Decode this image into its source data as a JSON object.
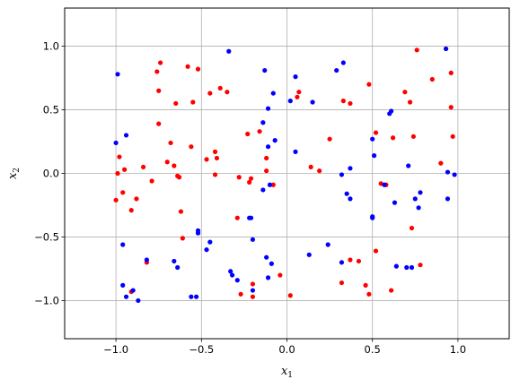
{
  "chart_data": {
    "type": "scatter",
    "xlabel": "x1",
    "ylabel": "x2",
    "xlim": [
      -1.3,
      1.3
    ],
    "ylim": [
      -1.3,
      1.3
    ],
    "grid": true,
    "xticks": [
      -1.0,
      -0.5,
      0.0,
      0.5,
      1.0
    ],
    "yticks": [
      -1.0,
      -0.5,
      0.0,
      0.5,
      1.0
    ],
    "tick_labels_x": [
      "−1.0",
      "−0.5",
      "0.0",
      "0.5",
      "1.0"
    ],
    "tick_labels_y": [
      "−1.0",
      "−0.5",
      "0.0",
      "0.5",
      "1.0"
    ],
    "series": [
      {
        "color": "#ff0000",
        "points": [
          [
            -0.74,
            0.87
          ],
          [
            -0.76,
            0.8
          ],
          [
            -0.58,
            0.84
          ],
          [
            -0.52,
            0.82
          ],
          [
            -0.39,
            0.67
          ],
          [
            -0.35,
            0.64
          ],
          [
            -0.45,
            0.63
          ],
          [
            -0.75,
            0.65
          ],
          [
            -0.65,
            0.55
          ],
          [
            -0.55,
            0.56
          ],
          [
            -0.75,
            0.39
          ],
          [
            -0.68,
            0.24
          ],
          [
            -0.56,
            0.21
          ],
          [
            -0.7,
            0.09
          ],
          [
            -0.66,
            0.06
          ],
          [
            -0.47,
            0.11
          ],
          [
            -0.42,
            0.17
          ],
          [
            -0.41,
            0.12
          ],
          [
            -0.42,
            -0.01
          ],
          [
            -0.64,
            -0.02
          ],
          [
            -0.63,
            -0.03
          ],
          [
            -0.84,
            0.05
          ],
          [
            -0.95,
            0.03
          ],
          [
            -0.98,
            0.13
          ],
          [
            -0.99,
            0.0
          ],
          [
            -1.0,
            -0.21
          ],
          [
            -0.96,
            -0.15
          ],
          [
            -0.88,
            -0.2
          ],
          [
            -0.91,
            -0.29
          ],
          [
            -0.79,
            -0.06
          ],
          [
            -0.62,
            -0.3
          ],
          [
            -0.61,
            -0.51
          ],
          [
            -0.82,
            -0.7
          ],
          [
            -0.91,
            -0.93
          ],
          [
            -0.23,
            0.31
          ],
          [
            -0.16,
            0.33
          ],
          [
            -0.12,
            0.12
          ],
          [
            -0.12,
            0.02
          ],
          [
            -0.08,
            -0.09
          ],
          [
            -0.21,
            -0.04
          ],
          [
            -0.22,
            -0.07
          ],
          [
            -0.28,
            -0.03
          ],
          [
            -0.29,
            -0.35
          ],
          [
            -0.27,
            -0.95
          ],
          [
            -0.2,
            -0.87
          ],
          [
            -0.2,
            -0.97
          ],
          [
            -0.04,
            -0.8
          ],
          [
            0.02,
            -0.96
          ],
          [
            0.06,
            0.6
          ],
          [
            0.07,
            0.64
          ],
          [
            0.14,
            0.05
          ],
          [
            0.19,
            0.02
          ],
          [
            0.25,
            0.27
          ],
          [
            0.33,
            0.57
          ],
          [
            0.37,
            0.55
          ],
          [
            0.48,
            0.7
          ],
          [
            0.52,
            0.32
          ],
          [
            0.55,
            -0.08
          ],
          [
            0.58,
            -0.09
          ],
          [
            0.62,
            0.28
          ],
          [
            0.69,
            0.64
          ],
          [
            0.72,
            0.56
          ],
          [
            0.76,
            0.97
          ],
          [
            0.85,
            0.74
          ],
          [
            0.9,
            0.08
          ],
          [
            0.96,
            0.79
          ],
          [
            0.96,
            0.52
          ],
          [
            0.97,
            0.29
          ],
          [
            0.74,
            0.29
          ],
          [
            0.73,
            -0.43
          ],
          [
            0.78,
            -0.72
          ],
          [
            0.52,
            -0.61
          ],
          [
            0.37,
            -0.68
          ],
          [
            0.42,
            -0.69
          ],
          [
            0.32,
            -0.86
          ],
          [
            0.46,
            -0.88
          ],
          [
            0.48,
            -0.95
          ],
          [
            0.61,
            -0.92
          ],
          [
            0.93,
            0.98
          ]
        ]
      },
      {
        "color": "#0000ff",
        "points": [
          [
            -0.99,
            0.78
          ],
          [
            -1.0,
            0.24
          ],
          [
            -0.94,
            0.3
          ],
          [
            -0.96,
            -0.56
          ],
          [
            -0.96,
            -0.88
          ],
          [
            -0.94,
            -0.97
          ],
          [
            -0.9,
            -0.92
          ],
          [
            -0.87,
            -1.0
          ],
          [
            -0.82,
            -0.68
          ],
          [
            -0.66,
            -0.69
          ],
          [
            -0.64,
            -0.74
          ],
          [
            -0.56,
            -0.97
          ],
          [
            -0.53,
            -0.97
          ],
          [
            -0.52,
            -0.45
          ],
          [
            -0.52,
            -0.47
          ],
          [
            -0.45,
            -0.54
          ],
          [
            -0.47,
            -0.6
          ],
          [
            -0.34,
            0.96
          ],
          [
            -0.33,
            -0.77
          ],
          [
            -0.32,
            -0.8
          ],
          [
            -0.29,
            -0.84
          ],
          [
            -0.22,
            -0.35
          ],
          [
            -0.21,
            -0.35
          ],
          [
            -0.2,
            -0.52
          ],
          [
            -0.2,
            -0.92
          ],
          [
            -0.14,
            0.4
          ],
          [
            -0.13,
            0.81
          ],
          [
            -0.11,
            0.51
          ],
          [
            -0.08,
            0.63
          ],
          [
            -0.07,
            0.26
          ],
          [
            -0.11,
            0.21
          ],
          [
            -0.14,
            -0.13
          ],
          [
            -0.1,
            -0.09
          ],
          [
            -0.12,
            -0.66
          ],
          [
            -0.09,
            -0.71
          ],
          [
            -0.11,
            -0.82
          ],
          [
            0.02,
            0.57
          ],
          [
            0.05,
            0.76
          ],
          [
            0.05,
            0.17
          ],
          [
            0.13,
            -0.64
          ],
          [
            0.15,
            0.56
          ],
          [
            0.24,
            -0.56
          ],
          [
            0.29,
            0.81
          ],
          [
            0.33,
            0.87
          ],
          [
            0.32,
            -0.01
          ],
          [
            0.32,
            -0.7
          ],
          [
            0.35,
            -0.16
          ],
          [
            0.37,
            -0.2
          ],
          [
            0.37,
            0.04
          ],
          [
            0.5,
            0.27
          ],
          [
            0.5,
            -0.35
          ],
          [
            0.5,
            -0.34
          ],
          [
            0.51,
            0.14
          ],
          [
            0.57,
            -0.09
          ],
          [
            0.6,
            0.47
          ],
          [
            0.61,
            0.49
          ],
          [
            0.63,
            -0.23
          ],
          [
            0.64,
            -0.73
          ],
          [
            0.7,
            -0.74
          ],
          [
            0.73,
            -0.74
          ],
          [
            0.71,
            0.06
          ],
          [
            0.75,
            -0.2
          ],
          [
            0.77,
            -0.27
          ],
          [
            0.78,
            -0.15
          ],
          [
            0.93,
            0.98
          ],
          [
            0.94,
            0.01
          ],
          [
            0.98,
            -0.01
          ],
          [
            0.94,
            -0.2
          ]
        ]
      }
    ]
  }
}
